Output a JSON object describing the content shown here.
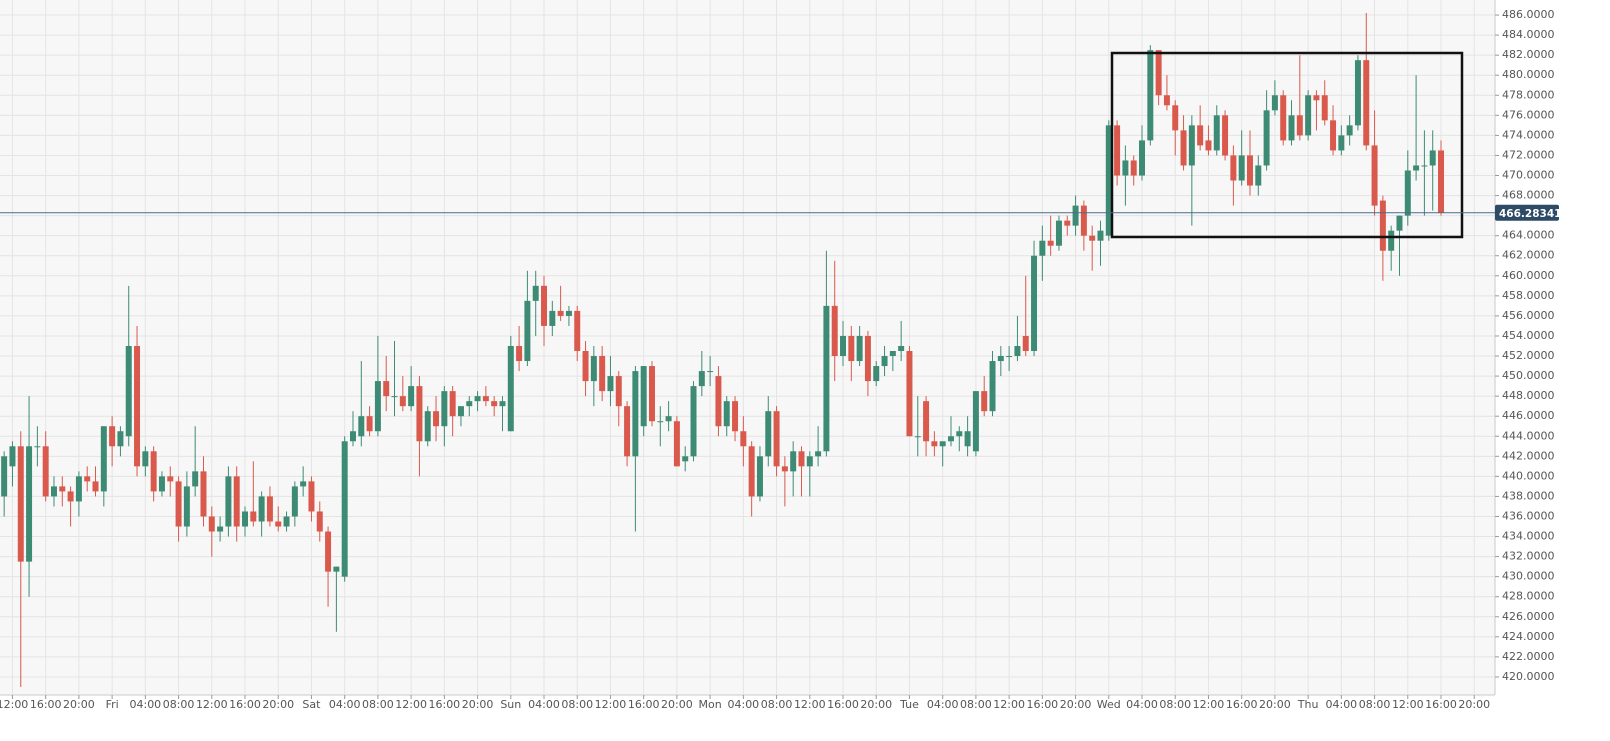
{
  "chart_data": {
    "type": "candlestick",
    "up_color": "#3d8b74",
    "down_color": "#d9594c",
    "grid": true,
    "xlim": [
      -1.5,
      178.5
    ],
    "ylim": [
      418.2,
      487.5
    ],
    "last_price": 466.28341,
    "xticks": [
      {
        "value": 0,
        "label": "12:00"
      },
      {
        "value": 4,
        "label": "16:00"
      },
      {
        "value": 8,
        "label": "20:00"
      },
      {
        "value": 12,
        "label": "Fri"
      },
      {
        "value": 16,
        "label": "04:00"
      },
      {
        "value": 20,
        "label": "08:00"
      },
      {
        "value": 24,
        "label": "12:00"
      },
      {
        "value": 28,
        "label": "16:00"
      },
      {
        "value": 32,
        "label": "20:00"
      },
      {
        "value": 36,
        "label": "Sat"
      },
      {
        "value": 40,
        "label": "04:00"
      },
      {
        "value": 44,
        "label": "08:00"
      },
      {
        "value": 48,
        "label": "12:00"
      },
      {
        "value": 52,
        "label": "16:00"
      },
      {
        "value": 56,
        "label": "20:00"
      },
      {
        "value": 60,
        "label": "Sun"
      },
      {
        "value": 64,
        "label": "04:00"
      },
      {
        "value": 68,
        "label": "08:00"
      },
      {
        "value": 72,
        "label": "12:00"
      },
      {
        "value": 76,
        "label": "16:00"
      },
      {
        "value": 80,
        "label": "20:00"
      },
      {
        "value": 84,
        "label": "Mon"
      },
      {
        "value": 88,
        "label": "04:00"
      },
      {
        "value": 92,
        "label": "08:00"
      },
      {
        "value": 96,
        "label": "12:00"
      },
      {
        "value": 100,
        "label": "16:00"
      },
      {
        "value": 104,
        "label": "20:00"
      },
      {
        "value": 108,
        "label": "Tue"
      },
      {
        "value": 112,
        "label": "04:00"
      },
      {
        "value": 116,
        "label": "08:00"
      },
      {
        "value": 120,
        "label": "12:00"
      },
      {
        "value": 124,
        "label": "16:00"
      },
      {
        "value": 128,
        "label": "20:00"
      },
      {
        "value": 132,
        "label": "Wed"
      },
      {
        "value": 136,
        "label": "04:00"
      },
      {
        "value": 140,
        "label": "08:00"
      },
      {
        "value": 144,
        "label": "12:00"
      },
      {
        "value": 148,
        "label": "16:00"
      },
      {
        "value": 152,
        "label": "20:00"
      },
      {
        "value": 156,
        "label": "Thu"
      },
      {
        "value": 160,
        "label": "04:00"
      },
      {
        "value": 164,
        "label": "08:00"
      },
      {
        "value": 168,
        "label": "12:00"
      },
      {
        "value": 172,
        "label": "16:00"
      },
      {
        "value": 176,
        "label": "20:00"
      }
    ],
    "yticks": [
      {
        "value": 420,
        "label": "420.0000"
      },
      {
        "value": 422,
        "label": "422.0000"
      },
      {
        "value": 424,
        "label": "424.0000"
      },
      {
        "value": 426,
        "label": "426.0000"
      },
      {
        "value": 428,
        "label": "428.0000"
      },
      {
        "value": 430,
        "label": "430.0000"
      },
      {
        "value": 432,
        "label": "432.0000"
      },
      {
        "value": 434,
        "label": "434.0000"
      },
      {
        "value": 436,
        "label": "436.0000"
      },
      {
        "value": 438,
        "label": "438.0000"
      },
      {
        "value": 440,
        "label": "440.0000"
      },
      {
        "value": 442,
        "label": "442.0000"
      },
      {
        "value": 444,
        "label": "444.0000"
      },
      {
        "value": 446,
        "label": "446.0000"
      },
      {
        "value": 448,
        "label": "448.0000"
      },
      {
        "value": 450,
        "label": "450.0000"
      },
      {
        "value": 452,
        "label": "452.0000"
      },
      {
        "value": 454,
        "label": "454.0000"
      },
      {
        "value": 456,
        "label": "456.0000"
      },
      {
        "value": 458,
        "label": "458.0000"
      },
      {
        "value": 460,
        "label": "460.0000"
      },
      {
        "value": 462,
        "label": "462.0000"
      },
      {
        "value": 464,
        "label": "464.0000"
      },
      {
        "value": 466,
        "label": "466.0000"
      },
      {
        "value": 468,
        "label": "468.0000"
      },
      {
        "value": 470,
        "label": "470.0000"
      },
      {
        "value": 472,
        "label": "472.0000"
      },
      {
        "value": 474,
        "label": "474.0000"
      },
      {
        "value": 476,
        "label": "476.0000"
      },
      {
        "value": 478,
        "label": "478.0000"
      },
      {
        "value": 480,
        "label": "480.0000"
      },
      {
        "value": 482,
        "label": "482.0000"
      },
      {
        "value": 484,
        "label": "484.0000"
      },
      {
        "value": 486,
        "label": "486.0000"
      }
    ],
    "x": [
      -1,
      0,
      1,
      2,
      3,
      4,
      5,
      6,
      7,
      8,
      9,
      10,
      11,
      12,
      13,
      14,
      15,
      16,
      17,
      18,
      19,
      20,
      21,
      22,
      23,
      24,
      25,
      26,
      27,
      28,
      29,
      30,
      31,
      32,
      33,
      34,
      35,
      36,
      37,
      38,
      39,
      40,
      41,
      42,
      43,
      44,
      45,
      46,
      47,
      48,
      49,
      50,
      51,
      52,
      53,
      54,
      55,
      56,
      57,
      58,
      59,
      60,
      61,
      62,
      63,
      64,
      65,
      66,
      67,
      68,
      69,
      70,
      71,
      72,
      73,
      74,
      75,
      76,
      77,
      78,
      79,
      80,
      81,
      82,
      83,
      84,
      85,
      86,
      87,
      88,
      89,
      90,
      91,
      92,
      93,
      94,
      95,
      96,
      97,
      98,
      99,
      100,
      101,
      102,
      103,
      104,
      105,
      106,
      107,
      108,
      109,
      110,
      111,
      112,
      113,
      114,
      115,
      116,
      117,
      118,
      119,
      120,
      121,
      122,
      123,
      124,
      125,
      126,
      127,
      128,
      129,
      130,
      131,
      132,
      133,
      134,
      135,
      136,
      137,
      138,
      139,
      140,
      141,
      142,
      143,
      144,
      145,
      146,
      147,
      148,
      149,
      150,
      151,
      152,
      153,
      154,
      155,
      156,
      157,
      158,
      159,
      160,
      161,
      162,
      163,
      164,
      165,
      166,
      167,
      168,
      169,
      170,
      171,
      172
    ],
    "ohlc": [
      [
        438,
        442.5,
        436,
        442
      ],
      [
        441,
        443.5,
        439,
        443
      ],
      [
        443,
        444.5,
        419,
        431.5
      ],
      [
        431.5,
        448,
        428,
        443
      ],
      [
        443,
        445,
        441,
        443
      ],
      [
        443,
        444.5,
        437.5,
        438
      ],
      [
        438,
        440,
        437,
        439
      ],
      [
        439,
        440,
        437,
        438.5
      ],
      [
        438.5,
        439,
        435,
        437.5
      ],
      [
        437.5,
        440.5,
        436,
        440
      ],
      [
        440,
        441,
        438.5,
        439.5
      ],
      [
        439.5,
        441,
        438,
        438.5
      ],
      [
        438.5,
        445,
        437,
        445
      ],
      [
        445,
        446,
        441,
        443
      ],
      [
        443,
        445,
        442,
        444.5
      ],
      [
        444,
        459,
        443,
        453
      ],
      [
        453,
        455,
        440,
        441
      ],
      [
        441,
        443,
        440,
        442.5
      ],
      [
        442.5,
        443,
        437.5,
        438.5
      ],
      [
        438.5,
        440.5,
        438,
        440
      ],
      [
        440,
        441,
        438,
        439.5
      ],
      [
        439.5,
        440,
        433.5,
        435
      ],
      [
        435,
        440.5,
        434,
        439
      ],
      [
        439,
        445,
        438,
        440.5
      ],
      [
        440.5,
        442,
        435,
        436
      ],
      [
        436,
        437,
        432,
        434.5
      ],
      [
        434.5,
        436,
        433.5,
        435
      ],
      [
        435,
        441,
        434,
        440
      ],
      [
        440,
        441,
        433.5,
        435
      ],
      [
        435,
        437,
        434,
        436.5
      ],
      [
        436.5,
        441.5,
        435,
        435.5
      ],
      [
        435.5,
        438.5,
        434,
        438
      ],
      [
        438,
        439,
        435,
        435.5
      ],
      [
        435.5,
        437,
        434.5,
        435
      ],
      [
        435,
        436.5,
        434.5,
        436
      ],
      [
        436,
        439.5,
        435,
        439
      ],
      [
        439,
        441,
        438,
        439.5
      ],
      [
        439.5,
        440,
        435.5,
        436.5
      ],
      [
        436.5,
        437.5,
        433.5,
        434.5
      ],
      [
        434.5,
        435,
        427,
        430.5
      ],
      [
        430.5,
        431,
        424.5,
        431
      ],
      [
        430,
        444,
        429.5,
        443.5
      ],
      [
        443.5,
        446.5,
        443,
        444.5
      ],
      [
        444,
        451.5,
        443,
        446
      ],
      [
        446,
        447,
        444,
        444.5
      ],
      [
        444.5,
        454,
        444,
        449.5
      ],
      [
        449.5,
        452,
        446.5,
        448
      ],
      [
        448,
        453.5,
        446,
        448
      ],
      [
        448,
        450,
        446.5,
        447
      ],
      [
        447,
        451,
        446.5,
        449
      ],
      [
        449,
        450,
        440,
        443.5
      ],
      [
        443.5,
        447,
        443,
        446.5
      ],
      [
        446.5,
        448,
        443.5,
        445
      ],
      [
        445,
        449,
        443,
        448.5
      ],
      [
        448.5,
        449,
        444,
        446
      ],
      [
        446,
        447,
        445,
        447
      ],
      [
        447,
        448,
        446,
        447.5
      ],
      [
        447.5,
        448.5,
        446.5,
        448
      ],
      [
        448,
        449,
        447,
        447.5
      ],
      [
        447.5,
        448,
        446,
        447
      ],
      [
        447,
        448,
        444.5,
        447.5
      ],
      [
        444.5,
        454,
        444.5,
        453
      ],
      [
        453,
        455,
        450.5,
        451.5
      ],
      [
        451.5,
        460.5,
        451,
        457.5
      ],
      [
        457.5,
        460.5,
        454,
        459
      ],
      [
        459,
        460,
        453,
        455
      ],
      [
        455,
        457.5,
        454,
        456.5
      ],
      [
        456.5,
        459,
        455.5,
        456
      ],
      [
        456,
        457,
        455,
        456.5
      ],
      [
        456.5,
        457,
        451.5,
        452.5
      ],
      [
        452.5,
        453.5,
        448,
        449.5
      ],
      [
        449.5,
        453,
        447,
        452
      ],
      [
        452,
        453,
        447.5,
        448.5
      ],
      [
        448.5,
        452,
        447,
        450
      ],
      [
        450,
        450.5,
        445,
        447
      ],
      [
        447,
        447.5,
        441,
        442
      ],
      [
        442,
        451,
        434.5,
        450.5
      ],
      [
        445,
        451,
        444,
        451
      ],
      [
        451,
        451.5,
        445,
        445.5
      ],
      [
        445.5,
        447,
        443,
        445.5
      ],
      [
        445.5,
        447.5,
        444.5,
        446
      ],
      [
        445.5,
        446,
        441,
        441
      ],
      [
        441.5,
        443,
        440.5,
        442
      ],
      [
        442,
        449.5,
        441.5,
        449
      ],
      [
        449,
        452.5,
        448,
        450.5
      ],
      [
        450.5,
        452,
        449,
        450.5
      ],
      [
        450,
        451,
        444,
        445
      ],
      [
        445,
        448,
        444,
        447.5
      ],
      [
        447.5,
        448,
        443.5,
        444.5
      ],
      [
        444.5,
        446,
        441,
        443
      ],
      [
        443,
        443.5,
        436,
        438
      ],
      [
        438,
        443,
        437.5,
        442
      ],
      [
        442,
        448,
        441,
        446.5
      ],
      [
        446.5,
        447,
        440,
        441
      ],
      [
        441,
        442,
        437,
        440.5
      ],
      [
        440.5,
        443.5,
        438,
        442.5
      ],
      [
        442.5,
        443,
        438,
        441
      ],
      [
        441,
        442.5,
        438,
        442
      ],
      [
        442,
        445,
        441,
        442.5
      ],
      [
        442.5,
        462.5,
        442,
        457
      ],
      [
        457,
        461.5,
        449.5,
        452
      ],
      [
        452,
        455.5,
        451,
        454
      ],
      [
        454,
        455,
        449.5,
        451.5
      ],
      [
        451.5,
        455,
        451,
        454
      ],
      [
        454,
        454.5,
        448,
        449.5
      ],
      [
        449.5,
        451.5,
        449,
        451
      ],
      [
        451,
        453,
        450,
        452
      ],
      [
        452,
        452.5,
        450.5,
        452.5
      ],
      [
        452.5,
        455.5,
        451.5,
        453
      ],
      [
        452.5,
        453,
        444,
        444
      ],
      [
        444,
        448,
        442,
        444
      ],
      [
        447.5,
        448,
        442,
        443.5
      ],
      [
        443.5,
        444.5,
        442,
        443
      ],
      [
        443,
        443.5,
        441,
        443.5
      ],
      [
        443.5,
        446,
        443,
        444
      ],
      [
        444,
        445,
        442.5,
        444.5
      ],
      [
        443,
        446,
        442,
        444.5
      ],
      [
        442.5,
        448.5,
        442,
        448.5
      ],
      [
        448.5,
        450,
        446,
        446.5
      ],
      [
        446.5,
        452.5,
        446,
        451.5
      ],
      [
        451.5,
        453,
        450,
        452
      ],
      [
        452,
        453,
        450.5,
        452
      ],
      [
        452,
        456,
        451.5,
        453
      ],
      [
        454,
        460,
        452,
        452.5
      ],
      [
        452.5,
        463.5,
        452,
        462
      ],
      [
        462,
        465,
        459.5,
        463.5
      ],
      [
        463.5,
        466,
        462,
        463
      ],
      [
        463,
        466,
        462.5,
        465.5
      ],
      [
        465.5,
        466,
        464,
        465
      ],
      [
        465,
        468,
        464,
        467
      ],
      [
        467,
        467.5,
        462.5,
        464
      ],
      [
        464,
        465,
        460.5,
        463.5
      ],
      [
        463.5,
        465.5,
        461,
        464.5
      ],
      [
        464,
        475.5,
        463.5,
        475
      ],
      [
        475,
        475.5,
        469,
        470
      ],
      [
        470,
        473,
        467,
        471.5
      ],
      [
        471.5,
        472,
        469,
        470
      ],
      [
        470,
        475,
        469.5,
        473.5
      ],
      [
        473.5,
        483,
        473,
        482.5
      ],
      [
        482.5,
        482.5,
        477,
        478
      ],
      [
        478,
        480,
        476.5,
        477
      ],
      [
        477,
        477.5,
        472,
        474.5
      ],
      [
        474.5,
        476,
        470.5,
        471
      ],
      [
        471,
        476,
        465,
        475
      ],
      [
        475,
        477,
        472.5,
        473
      ],
      [
        473.5,
        475,
        472,
        472.5
      ],
      [
        472.5,
        477,
        472,
        476
      ],
      [
        476,
        476.5,
        471.5,
        472
      ],
      [
        472,
        473,
        467,
        469.5
      ],
      [
        469.5,
        474.5,
        469,
        472
      ],
      [
        472,
        474.5,
        468,
        469
      ],
      [
        469,
        472,
        468,
        471
      ],
      [
        471,
        478.5,
        470.5,
        476.5
      ],
      [
        476.5,
        479.5,
        476,
        478
      ],
      [
        478,
        478.5,
        473,
        473.5
      ],
      [
        473.5,
        477.5,
        473,
        476
      ],
      [
        476,
        482,
        473.5,
        474
      ],
      [
        474,
        478.5,
        473.5,
        478
      ],
      [
        478,
        478.5,
        474.5,
        477.5
      ],
      [
        478,
        479.5,
        475,
        475.5
      ],
      [
        475.5,
        477,
        472,
        472.5
      ],
      [
        472.5,
        475,
        472,
        474
      ],
      [
        474,
        476,
        473,
        475
      ],
      [
        475,
        482,
        474.5,
        481.5
      ],
      [
        481.5,
        486.2,
        472.5,
        473
      ],
      [
        473,
        476.5,
        466,
        467
      ],
      [
        467.5,
        468,
        459.5,
        462.5
      ],
      [
        462.5,
        465,
        460.5,
        464.5
      ],
      [
        464.5,
        466,
        460,
        466
      ],
      [
        466,
        472.5,
        465,
        470.5
      ],
      [
        470.5,
        480,
        469.5,
        471
      ],
      [
        471,
        474.5,
        466,
        471
      ],
      [
        471,
        474.5,
        466.5,
        472.5
      ],
      [
        472.5,
        473.5,
        466,
        466.28341
      ]
    ]
  }
}
